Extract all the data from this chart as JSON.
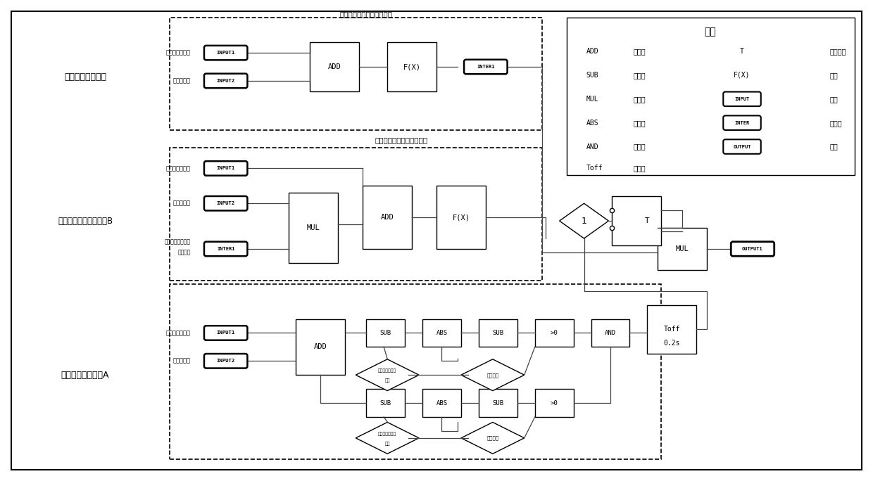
{
  "bg": "#ffffff",
  "fw": 12.4,
  "fh": 6.84,
  "dpi": 100,
  "legend_rows": [
    [
      "ADD",
      "加法器",
      "T",
      "条件转换"
    ],
    [
      "SUB",
      "减法器",
      "F(X)",
      "函数"
    ],
    [
      "MUL",
      "乘法器",
      "INPUT",
      "输入"
    ],
    [
      "ABS",
      "绝对値",
      "INTER",
      "中间値"
    ],
    [
      "AND",
      "逻辑与",
      "OUTPUT",
      "输出"
    ],
    [
      "Toff",
      "延时器",
      "",
      ""
    ]
  ],
  "legend_title": "示例",
  "label_top": "一次调频控制电路",
  "label_mid": "非线性区二次补唇模块B",
  "label_bot": "非线性区判断模块A",
  "top_title": "阀门非线性区一次补唇函数",
  "mid_title": "阀门非线性区二次补唇函数",
  "input1": "INPUT1",
  "input2": "INPUT2",
  "inter1": "INTER1",
  "output1": "OUTPUT1",
  "add": "ADD",
  "sub": "SUB",
  "mul": "MUL",
  "abs_": "ABS",
  "and_": "AND",
  "fx": "F(X)",
  "gt0": ">0",
  "toff": "Toff",
  "toff2": "0.2s",
  "lbl_valve_flow": "阀门流量给定値",
  "lbl_freq_flow": "调频流量値",
  "lbl_inter_coeff": "阀门非线性区一次",
  "lbl_inter_coeff2": "补唇系数",
  "lbl_center1a": "第一非线性区中",
  "lbl_center1b": "心点",
  "lbl_center2a": "第二非线性区中",
  "lbl_center2b": "心点",
  "lbl_dead1": "死区范围",
  "lbl_dead2": "死区范围",
  "lbl_T": "T",
  "lbl_1": "1"
}
